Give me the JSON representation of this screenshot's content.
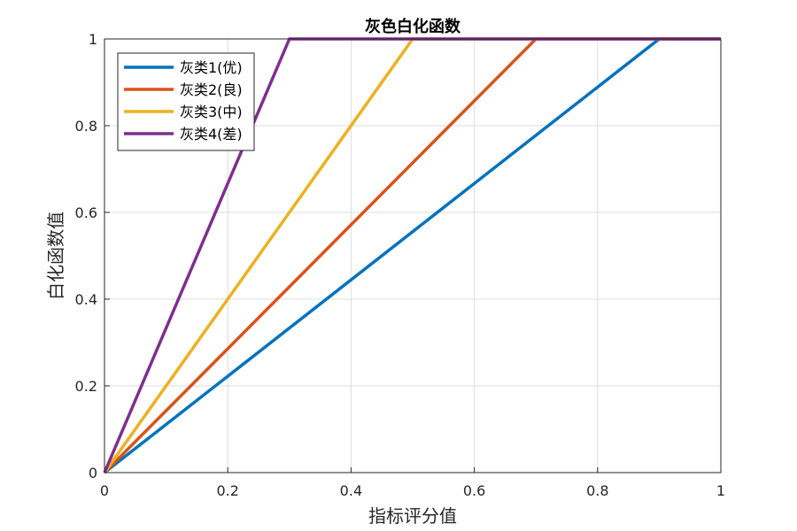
{
  "chart_data": {
    "type": "line",
    "title": "灰色白化函数",
    "xlabel": "指标评分值",
    "ylabel": "白化函数值",
    "xlim": [
      0,
      1
    ],
    "ylim": [
      0,
      1
    ],
    "x_ticks": [
      "0",
      "0.2",
      "0.4",
      "0.6",
      "0.8",
      "1"
    ],
    "y_ticks": [
      "0",
      "0.2",
      "0.4",
      "0.6",
      "0.8",
      "1"
    ],
    "grid": true,
    "legend_position": "top-left",
    "series": [
      {
        "name": "灰类1(优)",
        "color": "#0072BD",
        "points": [
          [
            0,
            0
          ],
          [
            0.9,
            1
          ],
          [
            1,
            1
          ]
        ]
      },
      {
        "name": "灰类2(良)",
        "color": "#D95319",
        "points": [
          [
            0,
            0
          ],
          [
            0.7,
            1
          ],
          [
            1,
            1
          ]
        ]
      },
      {
        "name": "灰类3(中)",
        "color": "#EDB120",
        "points": [
          [
            0,
            0
          ],
          [
            0.5,
            1
          ],
          [
            1,
            1
          ]
        ]
      },
      {
        "name": "灰类4(差)",
        "color": "#7E2F8E",
        "points": [
          [
            0,
            0
          ],
          [
            0.3,
            1
          ],
          [
            1,
            1
          ]
        ]
      }
    ]
  }
}
